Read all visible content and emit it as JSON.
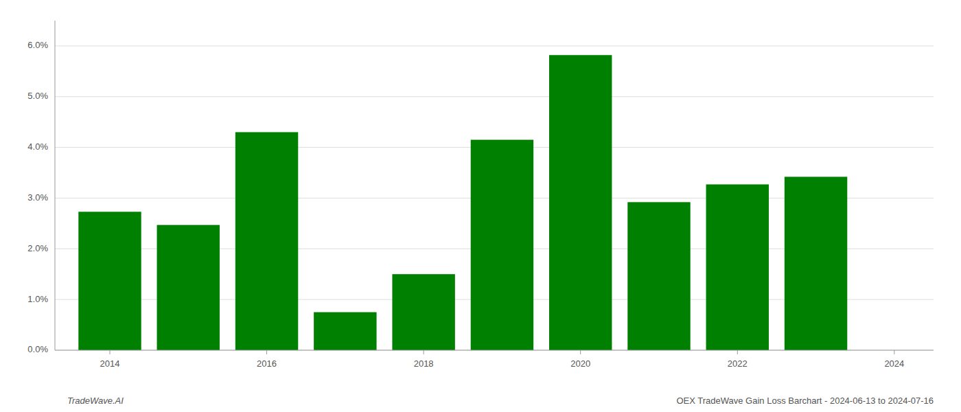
{
  "chart_data": {
    "type": "bar",
    "x": [
      2014,
      2015,
      2016,
      2017,
      2018,
      2019,
      2020,
      2021,
      2022,
      2023
    ],
    "values": [
      0.0273,
      0.0247,
      0.043,
      0.0075,
      0.015,
      0.0415,
      0.0582,
      0.0292,
      0.0327,
      0.0342
    ],
    "color": "#008000",
    "xlim": [
      2013.3,
      2024.5
    ],
    "xticks": [
      2014,
      2016,
      2018,
      2020,
      2022,
      2024
    ],
    "ylim": [
      0,
      0.065
    ],
    "yticks": [
      {
        "value": 0.0,
        "label": "0.0%"
      },
      {
        "value": 0.01,
        "label": "1.0%"
      },
      {
        "value": 0.02,
        "label": "2.0%"
      },
      {
        "value": 0.03,
        "label": "3.0%"
      },
      {
        "value": 0.04,
        "label": "4.0%"
      },
      {
        "value": 0.05,
        "label": "5.0%"
      },
      {
        "value": 0.06,
        "label": "6.0%"
      }
    ],
    "grid": true,
    "annotations": [
      "TradeWave.AI",
      "OEX TradeWave Gain Loss Barchart - 2024-06-13 to 2024-07-16"
    ]
  }
}
